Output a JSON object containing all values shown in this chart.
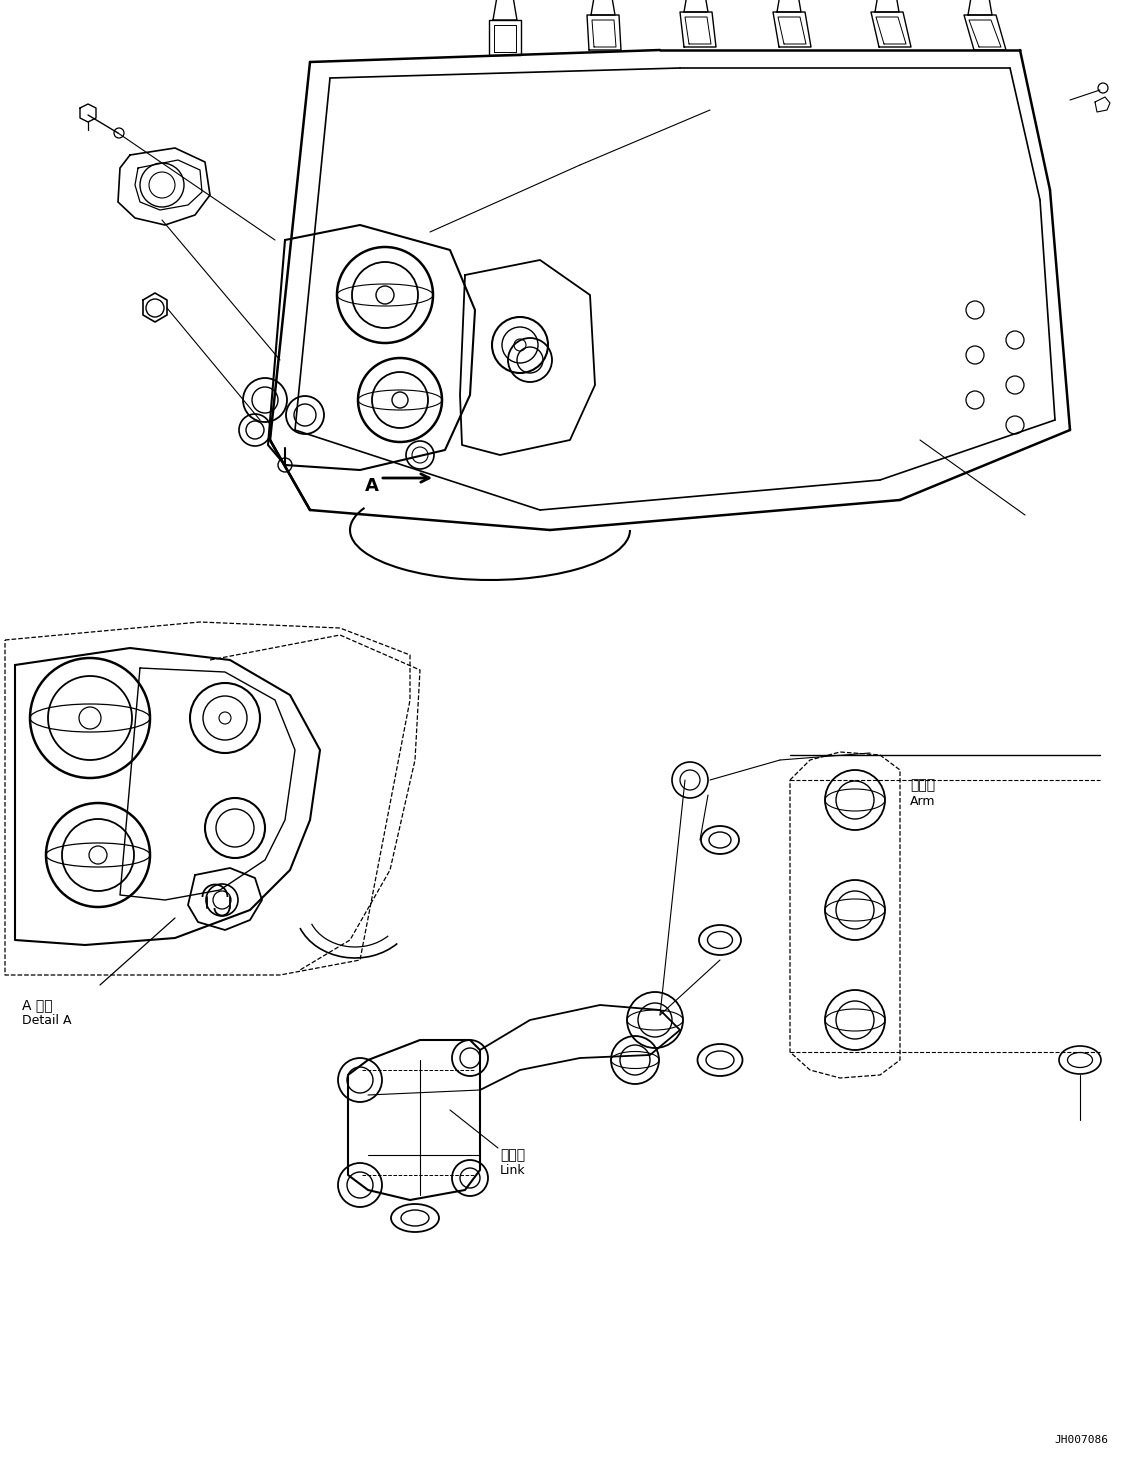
{
  "figure_width": 11.46,
  "figure_height": 14.59,
  "dpi": 100,
  "bg_color": "#ffffff",
  "lc": "#000000",
  "part_code": "JH007086",
  "lw_main": 1.5,
  "lw_thin": 0.8,
  "lw_thick": 2.0,
  "labels": {
    "detail_a_jp": "A 詳細",
    "detail_a_en": "Detail A",
    "link_jp": "リンク",
    "link_en": "Link",
    "arm_jp": "アーム",
    "arm_en": "Arm",
    "arrow_label": "A"
  }
}
